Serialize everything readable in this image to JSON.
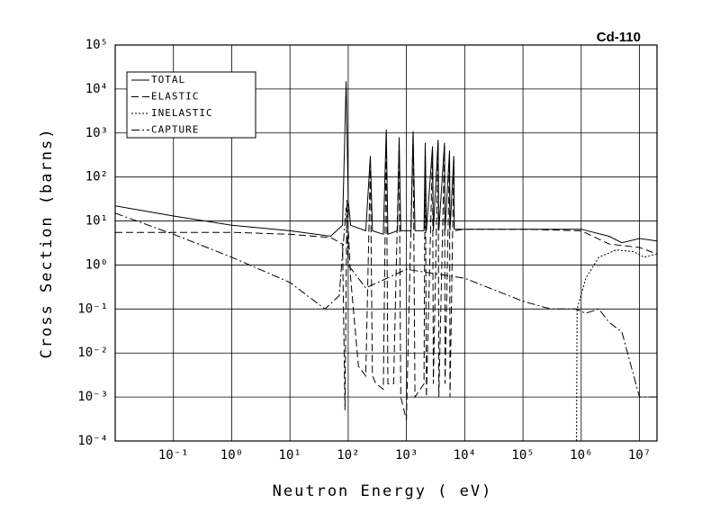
{
  "chart_data": {
    "type": "line",
    "title": "Cd-110",
    "x_label": "Neutron Energy ( eV)",
    "y_label": "Cross Section (barns)",
    "log_x": true,
    "log_y": true,
    "grid": true,
    "legend": "upper left",
    "xlim": [
      0.01,
      20000000
    ],
    "ylim": [
      0.0001,
      100000
    ],
    "xticks": [
      {
        "value": 0.1,
        "label": "10⁻¹"
      },
      {
        "value": 1,
        "label": "10⁰"
      },
      {
        "value": 10,
        "label": "10¹"
      },
      {
        "value": 100,
        "label": "10²"
      },
      {
        "value": 1000,
        "label": "10³"
      },
      {
        "value": 10000,
        "label": "10⁴"
      },
      {
        "value": 100000,
        "label": "10⁵"
      },
      {
        "value": 1000000,
        "label": "10⁶"
      },
      {
        "value": 10000000,
        "label": "10⁷"
      }
    ],
    "yticks": [
      {
        "value": 0.0001,
        "label": "10⁻⁴"
      },
      {
        "value": 0.001,
        "label": "10⁻³"
      },
      {
        "value": 0.01,
        "label": "10⁻²"
      },
      {
        "value": 0.1,
        "label": "10⁻¹"
      },
      {
        "value": 1,
        "label": "10⁰"
      },
      {
        "value": 10,
        "label": "10¹"
      },
      {
        "value": 100,
        "label": "10²"
      },
      {
        "value": 1000,
        "label": "10³"
      },
      {
        "value": 10000,
        "label": "10⁴"
      },
      {
        "value": 100000,
        "label": "10⁵"
      }
    ],
    "series": [
      {
        "name": "TOTAL",
        "color": "#000000",
        "dash": "none",
        "x": [
          0.01,
          0.1,
          1,
          10,
          50,
          80,
          92,
          100,
          110,
          200,
          240,
          260,
          400,
          450,
          480,
          700,
          750,
          800,
          1200,
          1300,
          1400,
          2000,
          2100,
          2200,
          2800,
          2900,
          3500,
          3600,
          4500,
          4600,
          5500,
          5600,
          6500,
          6600,
          10000,
          100000,
          1000000,
          3000000,
          5000000,
          10000000,
          20000000
        ],
        "values": [
          22,
          13,
          8,
          6,
          4.5,
          8,
          15000,
          30,
          8,
          6,
          300,
          6,
          5,
          1200,
          5,
          6,
          800,
          6,
          6,
          1100,
          6,
          6,
          600,
          6,
          500,
          6,
          700,
          6,
          600,
          6,
          400,
          6,
          300,
          6.5,
          6.5,
          6.5,
          6.5,
          4.5,
          3.2,
          4,
          3.5
        ]
      },
      {
        "name": "ELASTIC",
        "color": "#000000",
        "dash": "8,4",
        "x": [
          0.01,
          1,
          10,
          50,
          80,
          88,
          95,
          110,
          150,
          200,
          240,
          260,
          300,
          400,
          450,
          480,
          600,
          750,
          800,
          1000,
          1300,
          1400,
          2000,
          2100,
          2200,
          2800,
          2900,
          3500,
          3600,
          4500,
          4600,
          5500,
          5600,
          6500,
          6600,
          10000,
          100000,
          1000000,
          3000000,
          10000000,
          20000000
        ],
        "values": [
          5.5,
          5.5,
          5,
          4.2,
          3,
          0.0005,
          30,
          0.5,
          0.005,
          0.003,
          200,
          0.003,
          0.002,
          0.0015,
          1000,
          0.002,
          0.002,
          600,
          0.001,
          0.0003,
          1000,
          0.001,
          0.002,
          500,
          0.001,
          400,
          0.002,
          600,
          0.001,
          500,
          0.002,
          350,
          0.001,
          250,
          6,
          6.5,
          6.5,
          6,
          3,
          2.5,
          1.8
        ]
      },
      {
        "name": "INELASTIC",
        "color": "#000000",
        "dash": "2,2",
        "x": [
          830000,
          850000,
          1200000,
          2000000,
          4000000,
          8000000,
          12000000,
          20000000
        ],
        "values": [
          0.0001,
          0.1,
          0.5,
          1.5,
          2.2,
          2,
          1.5,
          1.8
        ]
      },
      {
        "name": "CAPTURE",
        "color": "#000000",
        "dash": "9,3,2,3",
        "x": [
          0.01,
          0.1,
          1,
          10,
          40,
          70,
          92,
          100,
          200,
          1000,
          10000,
          100000,
          300000,
          800000,
          1200000,
          2000000,
          3000000,
          5000000,
          8000000,
          10000000,
          20000000
        ],
        "values": [
          15,
          5,
          1.5,
          0.4,
          0.1,
          0.2,
          20,
          1,
          0.3,
          0.8,
          0.5,
          0.15,
          0.1,
          0.1,
          0.08,
          0.1,
          0.05,
          0.03,
          0.003,
          0.001,
          0.001
        ]
      }
    ]
  }
}
